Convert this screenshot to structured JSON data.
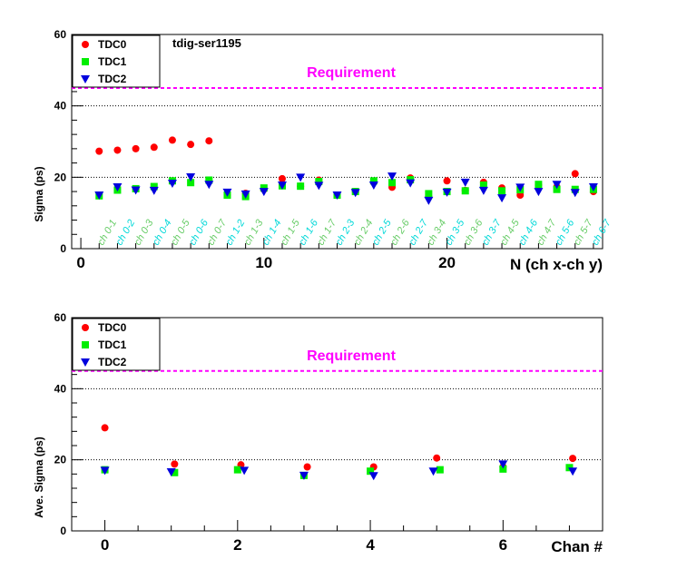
{
  "chart_data": [
    {
      "type": "scatter",
      "title": "tdig-ser1195",
      "xlabel": "N (ch x-ch y)",
      "ylabel": "Sigma (ps)",
      "xlim": [
        -0.5,
        28.5
      ],
      "ylim": [
        0,
        60
      ],
      "x_ticks": [
        0,
        10,
        20
      ],
      "y_ticks": [
        0,
        20,
        40,
        60
      ],
      "grid": "horizontal dotted at 20, 40, 60",
      "legend_position": "top-left",
      "requirement": {
        "label": "Requirement",
        "value": 45,
        "color": "#ff00ff"
      },
      "x": [
        1,
        2,
        3,
        4,
        5,
        6,
        7,
        8,
        9,
        10,
        11,
        12,
        13,
        14,
        15,
        16,
        17,
        18,
        19,
        20,
        21,
        22,
        23,
        24,
        25,
        26,
        27,
        28
      ],
      "pair_labels": [
        "ch 0-1",
        "ch 0-2",
        "ch 0-3",
        "ch 0-4",
        "ch 0-5",
        "ch 0-6",
        "ch 0-7",
        "ch 1-2",
        "ch 1-3",
        "ch 1-4",
        "ch 1-5",
        "ch 1-6",
        "ch 1-7",
        "ch 2-3",
        "ch 2-4",
        "ch 2-5",
        "ch 2-6",
        "ch 2-7",
        "ch 3-4",
        "ch 3-5",
        "ch 3-6",
        "ch 3-7",
        "ch 4-5",
        "ch 4-6",
        "ch 4-7",
        "ch 5-6",
        "ch 5-7",
        "ch 6-7"
      ],
      "pair_label_colors": [
        "#66cc66",
        "#00d8d8"
      ],
      "series": [
        {
          "name": "TDC0",
          "color": "#ff0000",
          "marker": "circle",
          "values": [
            27.3,
            27.6,
            28.0,
            28.4,
            30.4,
            29.2,
            30.2,
            15.0,
            15.5,
            16.6,
            19.6,
            17.5,
            19.2,
            15.0,
            16.0,
            18.6,
            17.2,
            19.8,
            14.6,
            19.0,
            16.3,
            18.6,
            17.0,
            15.0,
            17.8,
            17.3,
            21.0,
            16.0
          ]
        },
        {
          "name": "TDC1",
          "color": "#00ee00",
          "marker": "square",
          "values": [
            14.8,
            16.4,
            16.8,
            17.4,
            19.0,
            18.5,
            19.2,
            15.0,
            14.6,
            17.0,
            17.6,
            17.5,
            18.8,
            15.0,
            16.0,
            19.0,
            18.5,
            19.3,
            15.4,
            16.0,
            16.2,
            17.8,
            16.2,
            16.5,
            18.0,
            16.6,
            16.6,
            16.6
          ]
        },
        {
          "name": "TDC2",
          "color": "#0000dd",
          "marker": "triangle-down",
          "values": [
            15.0,
            17.3,
            16.4,
            16.3,
            18.3,
            20.1,
            18.0,
            15.8,
            15.3,
            16.0,
            17.8,
            20.0,
            17.7,
            15.0,
            15.7,
            17.8,
            20.3,
            18.4,
            13.5,
            15.8,
            18.6,
            16.3,
            14.2,
            17.2,
            16.0,
            18.0,
            15.7,
            17.3
          ]
        }
      ]
    },
    {
      "type": "scatter",
      "title": "",
      "xlabel": "Chan #",
      "ylabel": "Ave. Sigma (ps)",
      "xlim": [
        -0.5,
        7.5
      ],
      "ylim": [
        0,
        60
      ],
      "x_ticks": [
        0,
        2,
        4,
        6
      ],
      "y_ticks": [
        0,
        20,
        40,
        60
      ],
      "grid": "horizontal dotted at 20, 40, 60",
      "legend_position": "top-left",
      "requirement": {
        "label": "Requirement",
        "value": 45,
        "color": "#ff00ff"
      },
      "series": [
        {
          "name": "TDC0",
          "color": "#ff0000",
          "marker": "circle",
          "x": [
            0,
            1.05,
            2.05,
            3.05,
            4.05,
            5.0,
            6.0,
            7.05
          ],
          "values": [
            29.0,
            18.8,
            18.6,
            18.0,
            18.0,
            20.5,
            18.0,
            20.4
          ]
        },
        {
          "name": "TDC1",
          "color": "#00ee00",
          "marker": "square",
          "x": [
            0,
            1.05,
            2.0,
            3.0,
            4.0,
            5.05,
            6.0,
            7.0
          ],
          "values": [
            17.2,
            16.4,
            17.2,
            15.6,
            16.8,
            17.2,
            17.4,
            17.8
          ]
        },
        {
          "name": "TDC2",
          "color": "#0000dd",
          "marker": "triangle-down",
          "x": [
            0,
            1.0,
            2.1,
            3.0,
            4.05,
            4.95,
            6.0,
            7.05
          ],
          "values": [
            17.0,
            16.6,
            17.0,
            15.6,
            15.5,
            16.8,
            18.8,
            16.8
          ]
        }
      ]
    }
  ]
}
